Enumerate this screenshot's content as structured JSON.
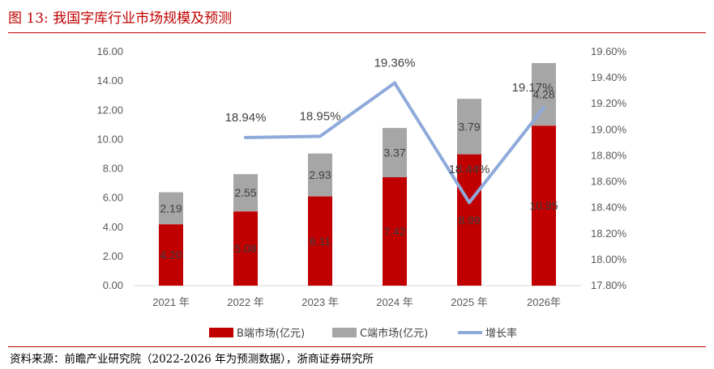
{
  "figure_title": "图 13:  我国字库行业市场规模及预测",
  "source_note": "资料来源：前瞻产业研究院（2022-2026 年为预测数据），浙商证券研究所",
  "chart_data": {
    "type": "bar",
    "stacked": true,
    "categories": [
      "2021 年",
      "2022 年",
      "2023 年",
      "2024 年",
      "2025 年",
      "2026年"
    ],
    "series": [
      {
        "name": "B端市场(亿元)",
        "kind": "bar",
        "axis": "left",
        "color": "#c00000",
        "values": [
          4.2,
          5.08,
          6.11,
          7.42,
          8.99,
          10.95
        ],
        "labels": [
          "4.20",
          "5.08",
          "6.11",
          "7.42",
          "8.99",
          "10.95"
        ]
      },
      {
        "name": "C端市场(亿元)",
        "kind": "bar",
        "axis": "left",
        "color": "#a6a6a6",
        "values": [
          2.19,
          2.55,
          2.93,
          3.37,
          3.79,
          4.28
        ],
        "labels": [
          "2.19",
          "2.55",
          "2.93",
          "3.37",
          "3.79",
          "4.28"
        ]
      },
      {
        "name": "增长率",
        "kind": "line",
        "axis": "right",
        "color": "#8eaadb",
        "values": [
          null,
          18.94,
          18.95,
          19.36,
          18.44,
          19.17
        ],
        "labels": [
          "",
          "18.94%",
          "18.95%",
          "19.36%",
          "18.44%",
          "19.17%"
        ]
      }
    ],
    "y_left": {
      "min": 0,
      "max": 16,
      "step": 2,
      "ticks": [
        "0.00",
        "2.00",
        "4.00",
        "6.00",
        "8.00",
        "10.00",
        "12.00",
        "14.00",
        "16.00"
      ]
    },
    "y_right": {
      "min": 17.8,
      "max": 19.6,
      "step": 0.2,
      "ticks": [
        "17.80%",
        "18.00%",
        "18.20%",
        "18.40%",
        "18.60%",
        "18.80%",
        "19.00%",
        "19.20%",
        "19.40%",
        "19.60%"
      ]
    },
    "grid": false,
    "legend_position": "bottom"
  }
}
